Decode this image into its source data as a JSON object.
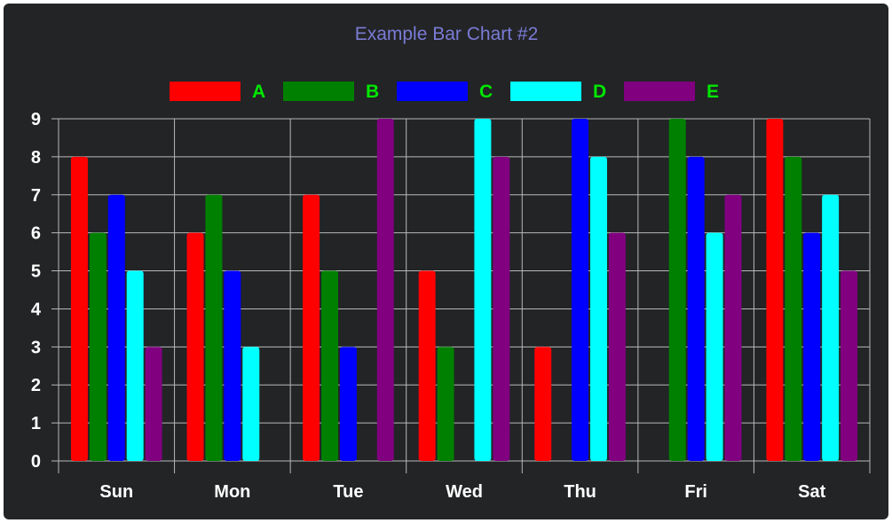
{
  "chart_data": {
    "type": "bar",
    "title": "Example Bar Chart #2",
    "xlabel": "",
    "ylabel": "",
    "ylim": [
      0,
      9
    ],
    "yticks": [
      0,
      1,
      2,
      3,
      4,
      5,
      6,
      7,
      8,
      9
    ],
    "grid": true,
    "legend_position": "top",
    "categories": [
      "Sun",
      "Mon",
      "Tue",
      "Wed",
      "Thu",
      "Fri",
      "Sat"
    ],
    "series": [
      {
        "name": "A",
        "color": "#ff0000",
        "values": [
          8,
          6,
          7,
          5,
          3,
          0,
          9
        ]
      },
      {
        "name": "B",
        "color": "#008000",
        "values": [
          6,
          7,
          5,
          3,
          0,
          9,
          8
        ]
      },
      {
        "name": "C",
        "color": "#0000ff",
        "values": [
          7,
          5,
          3,
          0,
          9,
          8,
          6
        ]
      },
      {
        "name": "D",
        "color": "#00ffff",
        "values": [
          5,
          3,
          0,
          9,
          8,
          6,
          7
        ]
      },
      {
        "name": "E",
        "color": "#800080",
        "values": [
          3,
          0,
          9,
          8,
          6,
          7,
          5
        ]
      }
    ]
  },
  "colors": {
    "background": "#222426",
    "title": "#7b7bd6",
    "legend_text": "#00e600",
    "grid": "#b8b8b8",
    "tick_text": "#ffffff"
  }
}
